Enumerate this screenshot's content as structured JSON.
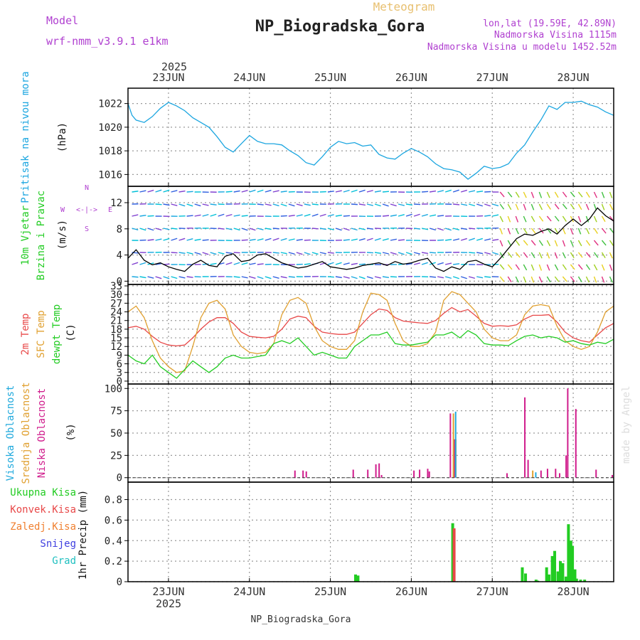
{
  "header": {
    "model_label": "Model",
    "model_name": "wrf-nmm_v3.9.1  e1km",
    "top_label": "Meteogram",
    "title": "NP_Biogradska_Gora",
    "coords": "lon,lat (19.59E, 42.89N)",
    "elevation": "Nadmorska Visina 1115m",
    "model_elevation": "Nadmorska Visina u modelu 1452.52m",
    "credit": "made by Angel",
    "footer": "NP_Biogradska_Gora"
  },
  "time_axis": {
    "year": "2025",
    "days": [
      "23JUN",
      "24JUN",
      "25JUN",
      "26JUN",
      "27JUN",
      "28JUN"
    ],
    "x_range_days": [
      -0.5,
      5.5
    ]
  },
  "colors": {
    "pressure": "#1ca6e0",
    "wind_arrow": "#00b4c8",
    "t2m": "#e84848",
    "sfc": "#e0a030",
    "dewpt": "#22cc22",
    "cloud_high": "#22aadd",
    "cloud_mid": "#e0a030",
    "cloud_low": "#d01c8c",
    "precip_total": "#22cc22",
    "precip_conv": "#e84848",
    "precip_frz": "#f08030",
    "snow": "#4040e0",
    "hail": "#20c0c0",
    "wind_label": "#22cc22",
    "temp_label_t2m": "#e84848",
    "temp_label_sfc": "#e0a030",
    "temp_label_dew": "#22cc22",
    "grid": "#999999"
  },
  "panels": {
    "pressure": {
      "labels": [
        "Pritisak na nivou mora"
      ],
      "unit": "(hPa)",
      "ticks": [
        "1016",
        "1018",
        "1020",
        "1022"
      ]
    },
    "wind": {
      "labels": [
        "10m Vjetar",
        "Brzina i Pravac"
      ],
      "unit": "(m/s)",
      "ticks": [
        "0",
        "4",
        "8",
        "12"
      ],
      "compass_n": "N",
      "compass_w": "W",
      "compass_e": "E",
      "compass_s": "S"
    },
    "temp": {
      "labels": [
        "2m Temp",
        "SFC Temp",
        "dewpt Temp"
      ],
      "unit": "(C)",
      "ticks": [
        "0",
        "3",
        "6",
        "9",
        "12",
        "15",
        "18",
        "21",
        "24",
        "27",
        "30",
        "33"
      ]
    },
    "cloud": {
      "labels": [
        "Visoka Oblacnost",
        "Srednja Oblacnost",
        "Niska Oblacnost"
      ],
      "unit": "(%)",
      "ticks": [
        "0",
        "25",
        "50",
        "75",
        "100"
      ]
    },
    "precip": {
      "labels": [
        "Ukupna Kisa",
        "Konvek.Kisa",
        "Zaledj.Kisa",
        "Snijeg",
        "Grad"
      ],
      "unit": "1hr Precip (mm)",
      "ticks": [
        "0",
        "0.2",
        "0.4",
        "0.6",
        "0.8"
      ]
    }
  },
  "chart_data": [
    {
      "type": "line",
      "title": "",
      "ylabel": "Pritisak na nivou mora (hPa)",
      "ylim": [
        1015,
        1023.3
      ],
      "x_units": "days since 23JUN 00:00",
      "series": [
        {
          "name": "Pritisak na nivou mora",
          "x": [
            -0.5,
            -0.45,
            -0.4,
            -0.3,
            -0.2,
            -0.1,
            0,
            0.1,
            0.2,
            0.3,
            0.4,
            0.5,
            0.6,
            0.7,
            0.8,
            0.9,
            1.0,
            1.1,
            1.2,
            1.3,
            1.4,
            1.5,
            1.6,
            1.7,
            1.8,
            1.9,
            2.0,
            2.1,
            2.2,
            2.3,
            2.4,
            2.5,
            2.6,
            2.7,
            2.8,
            2.9,
            3.0,
            3.1,
            3.2,
            3.3,
            3.4,
            3.5,
            3.6,
            3.7,
            3.8,
            3.9,
            4.0,
            4.1,
            4.2,
            4.3,
            4.4,
            4.5,
            4.6,
            4.7,
            4.8,
            4.9,
            5.0,
            5.1,
            5.2,
            5.3,
            5.4,
            5.5
          ],
          "y": [
            1022.0,
            1021.0,
            1020.6,
            1020.4,
            1020.9,
            1021.6,
            1022.1,
            1021.8,
            1021.4,
            1020.8,
            1020.4,
            1020.0,
            1019.2,
            1018.3,
            1017.9,
            1018.6,
            1019.3,
            1018.8,
            1018.6,
            1018.6,
            1018.5,
            1018.0,
            1017.6,
            1017.0,
            1016.8,
            1017.5,
            1018.3,
            1018.8,
            1018.6,
            1018.7,
            1018.4,
            1018.5,
            1017.7,
            1017.4,
            1017.3,
            1017.8,
            1018.2,
            1017.9,
            1017.5,
            1016.9,
            1016.5,
            1016.4,
            1016.2,
            1015.6,
            1016.1,
            1016.7,
            1016.5,
            1016.6,
            1016.9,
            1017.8,
            1018.5,
            1019.6,
            1020.6,
            1021.8,
            1021.5,
            1022.1,
            1022.1,
            1022.2,
            1021.9,
            1021.7,
            1021.3,
            1021.0
          ]
        }
      ]
    },
    {
      "type": "line",
      "title": "",
      "ylabel": "10m Vjetar Brzina i Pravac (m/s)",
      "ylim": [
        -0.5,
        14.5
      ],
      "x_units": "days since 23JUN 00:00",
      "series": [
        {
          "name": "10m Vjetar",
          "x": [
            -0.5,
            -0.4,
            -0.3,
            -0.2,
            -0.1,
            0,
            0.1,
            0.2,
            0.3,
            0.4,
            0.5,
            0.6,
            0.7,
            0.8,
            0.9,
            1.0,
            1.1,
            1.2,
            1.3,
            1.4,
            1.5,
            1.6,
            1.7,
            1.8,
            1.9,
            2.0,
            2.1,
            2.2,
            2.3,
            2.4,
            2.5,
            2.6,
            2.7,
            2.8,
            2.9,
            3.0,
            3.1,
            3.2,
            3.3,
            3.4,
            3.5,
            3.6,
            3.7,
            3.8,
            3.9,
            4.0,
            4.1,
            4.2,
            4.3,
            4.4,
            4.5,
            4.6,
            4.7,
            4.8,
            4.9,
            5.0,
            5.1,
            5.2,
            5.3,
            5.4,
            5.5
          ],
          "y": [
            3.5,
            4.8,
            3.2,
            2.5,
            2.8,
            2.2,
            1.8,
            1.5,
            2.6,
            3.2,
            2.4,
            2.2,
            3.8,
            4.2,
            3.0,
            3.2,
            4.0,
            4.2,
            3.5,
            2.8,
            2.4,
            2.0,
            2.2,
            2.6,
            3.0,
            2.2,
            2.0,
            1.8,
            2.0,
            2.4,
            2.6,
            2.8,
            2.4,
            3.0,
            2.6,
            2.8,
            3.2,
            3.5,
            2.0,
            1.5,
            2.2,
            1.8,
            3.0,
            3.2,
            2.6,
            2.2,
            3.5,
            5.0,
            6.5,
            7.2,
            7.0,
            7.6,
            8.0,
            7.2,
            8.5,
            9.5,
            8.5,
            9.5,
            11.2,
            10.0,
            9.2
          ]
        }
      ]
    },
    {
      "type": "line",
      "title": "",
      "ylabel": "Temp (C)",
      "ylim": [
        -1,
        33.5
      ],
      "x_units": "days since 23JUN 00:00",
      "series": [
        {
          "name": "2m Temp",
          "x": [
            -0.5,
            -0.4,
            -0.3,
            -0.2,
            -0.1,
            0,
            0.1,
            0.2,
            0.3,
            0.4,
            0.5,
            0.6,
            0.7,
            0.8,
            0.9,
            1.0,
            1.1,
            1.2,
            1.3,
            1.4,
            1.5,
            1.6,
            1.7,
            1.8,
            1.9,
            2.0,
            2.1,
            2.2,
            2.3,
            2.4,
            2.5,
            2.6,
            2.7,
            2.8,
            2.9,
            3.0,
            3.1,
            3.2,
            3.3,
            3.4,
            3.5,
            3.6,
            3.7,
            3.8,
            3.9,
            4.0,
            4.1,
            4.2,
            4.3,
            4.4,
            4.5,
            4.6,
            4.7,
            4.8,
            4.9,
            5.0,
            5.1,
            5.2,
            5.3,
            5.4,
            5.5
          ],
          "y": [
            18.5,
            19,
            18,
            15.5,
            13.5,
            12.5,
            12.2,
            12.5,
            15,
            18,
            20.5,
            22,
            22,
            20,
            17,
            15.5,
            15.2,
            15,
            15.5,
            18,
            21.5,
            22.5,
            22,
            19,
            17,
            16.5,
            16.2,
            16.2,
            17,
            20,
            23,
            25,
            24.5,
            22,
            20.8,
            20.5,
            20.2,
            20,
            21,
            23.5,
            25.5,
            24,
            24.8,
            22.5,
            20,
            19,
            19.2,
            19,
            19.5,
            21.5,
            22.8,
            22.8,
            23,
            20.5,
            17,
            15,
            14,
            13.5,
            16,
            18.5,
            20
          ]
        },
        {
          "name": "SFC Temp",
          "x": [
            -0.5,
            -0.4,
            -0.3,
            -0.2,
            -0.1,
            0,
            0.1,
            0.2,
            0.3,
            0.4,
            0.5,
            0.6,
            0.7,
            0.8,
            0.9,
            1.0,
            1.1,
            1.2,
            1.3,
            1.4,
            1.5,
            1.6,
            1.7,
            1.8,
            1.9,
            2.0,
            2.1,
            2.2,
            2.3,
            2.4,
            2.5,
            2.6,
            2.7,
            2.8,
            2.9,
            3.0,
            3.1,
            3.2,
            3.3,
            3.4,
            3.5,
            3.6,
            3.7,
            3.8,
            3.9,
            4.0,
            4.1,
            4.2,
            4.3,
            4.4,
            4.5,
            4.6,
            4.7,
            4.8,
            4.9,
            5.0,
            5.1,
            5.2,
            5.3,
            5.4,
            5.5
          ],
          "y": [
            24,
            26,
            22,
            14,
            8,
            5,
            3,
            3.5,
            12,
            22,
            27,
            28,
            25,
            16,
            12,
            10,
            9.5,
            10,
            13,
            23,
            28,
            29,
            27,
            19,
            14,
            12,
            11,
            11,
            14,
            24,
            30.5,
            30,
            28,
            20,
            14,
            12,
            12,
            13,
            17,
            28,
            31,
            30,
            27,
            24,
            18,
            15,
            14,
            14,
            16,
            23,
            26,
            26.5,
            26,
            19,
            14,
            12,
            11,
            12,
            17,
            24,
            26
          ]
        },
        {
          "name": "dewpt Temp",
          "x": [
            -0.5,
            -0.4,
            -0.3,
            -0.2,
            -0.1,
            0,
            0.1,
            0.2,
            0.3,
            0.4,
            0.5,
            0.6,
            0.7,
            0.8,
            0.9,
            1.0,
            1.1,
            1.2,
            1.3,
            1.4,
            1.5,
            1.6,
            1.7,
            1.8,
            1.9,
            2.0,
            2.1,
            2.2,
            2.3,
            2.4,
            2.5,
            2.6,
            2.7,
            2.8,
            2.9,
            3.0,
            3.1,
            3.2,
            3.3,
            3.4,
            3.5,
            3.6,
            3.7,
            3.8,
            3.9,
            4.0,
            4.1,
            4.2,
            4.3,
            4.4,
            4.5,
            4.6,
            4.7,
            4.8,
            4.9,
            5.0,
            5.1,
            5.2,
            5.3,
            5.4,
            5.5
          ],
          "y": [
            9,
            7,
            6,
            9,
            5,
            3,
            1,
            4,
            7,
            5,
            3,
            5,
            8,
            9,
            8,
            8,
            8.5,
            9,
            13,
            14,
            13,
            15,
            12,
            9,
            10,
            9,
            8,
            8,
            12,
            14,
            16,
            16,
            17,
            13,
            12.5,
            12.5,
            13,
            13.5,
            16,
            16,
            17,
            15,
            17.5,
            16,
            13,
            12.5,
            12.5,
            12.3,
            14,
            15.5,
            16,
            15,
            15.5,
            15,
            13.5,
            14,
            13,
            12.5,
            13.5,
            13,
            14.5
          ]
        }
      ]
    },
    {
      "type": "bar",
      "title": "",
      "ylabel": "Oblacnost (%)",
      "ylim": [
        -5,
        105
      ],
      "x_units": "days since 23JUN 00:00",
      "series": [
        {
          "name": "Niska Oblacnost",
          "x": [
            1.58,
            1.68,
            1.72,
            2.3,
            2.48,
            2.58,
            2.62,
            2.65,
            3.05,
            3.12,
            3.22,
            3.24,
            3.5,
            3.55,
            4.2,
            4.42,
            4.46,
            4.62,
            4.7,
            4.8,
            4.85,
            4.93,
            4.95,
            5.05,
            5.3,
            5.5
          ],
          "y": [
            8,
            8,
            7,
            9,
            9,
            15,
            16,
            3,
            8,
            9,
            10,
            7,
            72,
            43,
            5,
            90,
            20,
            8,
            10,
            10,
            5,
            25,
            100,
            77,
            9,
            3
          ]
        },
        {
          "name": "Srednja Oblacnost",
          "x": [
            3.52,
            3.55,
            4.5
          ],
          "y": [
            72,
            43,
            8
          ]
        },
        {
          "name": "Visoka Oblacnost",
          "x": [
            3.53,
            4.52
          ],
          "y": [
            74,
            6
          ]
        }
      ]
    },
    {
      "type": "bar",
      "title": "",
      "ylabel": "1hr Precip (mm)",
      "ylim": [
        0,
        0.97
      ],
      "x_units": "days since 23JUN 00:00",
      "series": [
        {
          "name": "Ukupna Kisa",
          "x": [
            2.32,
            2.35,
            3.52,
            4.38,
            4.42,
            4.55,
            4.57,
            4.68,
            4.71,
            4.75,
            4.78,
            4.82,
            4.85,
            4.88,
            4.92,
            4.95,
            4.98,
            5.0,
            5.03,
            5.05,
            5.1,
            5.15
          ],
          "y": [
            0.07,
            0.06,
            0.57,
            0.14,
            0.08,
            0.02,
            0.01,
            0.14,
            0.07,
            0.25,
            0.3,
            0.1,
            0.2,
            0.18,
            0.05,
            0.56,
            0.4,
            0.35,
            0.12,
            0.03,
            0.02,
            0.02
          ]
        },
        {
          "name": "Konvek.Kisa",
          "x": [
            3.52
          ],
          "y": [
            0.52
          ]
        }
      ]
    }
  ]
}
